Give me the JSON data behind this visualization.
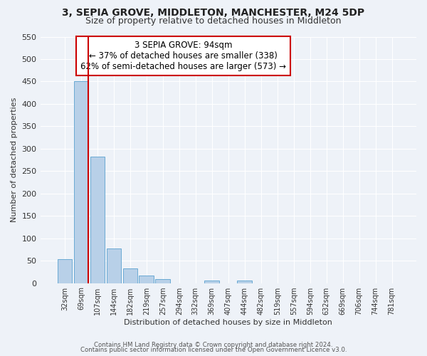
{
  "title": "3, SEPIA GROVE, MIDDLETON, MANCHESTER, M24 5DP",
  "subtitle": "Size of property relative to detached houses in Middleton",
  "xlabel": "Distribution of detached houses by size in Middleton",
  "ylabel": "Number of detached properties",
  "bar_labels": [
    "32sqm",
    "69sqm",
    "107sqm",
    "144sqm",
    "182sqm",
    "219sqm",
    "257sqm",
    "294sqm",
    "332sqm",
    "369sqm",
    "407sqm",
    "444sqm",
    "482sqm",
    "519sqm",
    "557sqm",
    "594sqm",
    "632sqm",
    "669sqm",
    "706sqm",
    "744sqm",
    "781sqm"
  ],
  "bar_values": [
    53,
    450,
    283,
    78,
    32,
    17,
    9,
    0,
    0,
    6,
    0,
    5,
    0,
    0,
    0,
    0,
    0,
    0,
    0,
    0,
    0
  ],
  "bar_color": "#b8d0e8",
  "bar_edge_color": "#6aaad4",
  "red_line_color": "#cc0000",
  "red_line_x": 1.45,
  "ylim": [
    0,
    550
  ],
  "yticks": [
    0,
    50,
    100,
    150,
    200,
    250,
    300,
    350,
    400,
    450,
    500,
    550
  ],
  "annotation_title": "3 SEPIA GROVE: 94sqm",
  "annotation_line1": "← 37% of detached houses are smaller (338)",
  "annotation_line2": "62% of semi-detached houses are larger (573) →",
  "annotation_box_color": "#ffffff",
  "annotation_box_edge": "#cc0000",
  "footer1": "Contains HM Land Registry data © Crown copyright and database right 2024.",
  "footer2": "Contains public sector information licensed under the Open Government Licence v3.0.",
  "background_color": "#eef2f8",
  "grid_color": "#ffffff"
}
